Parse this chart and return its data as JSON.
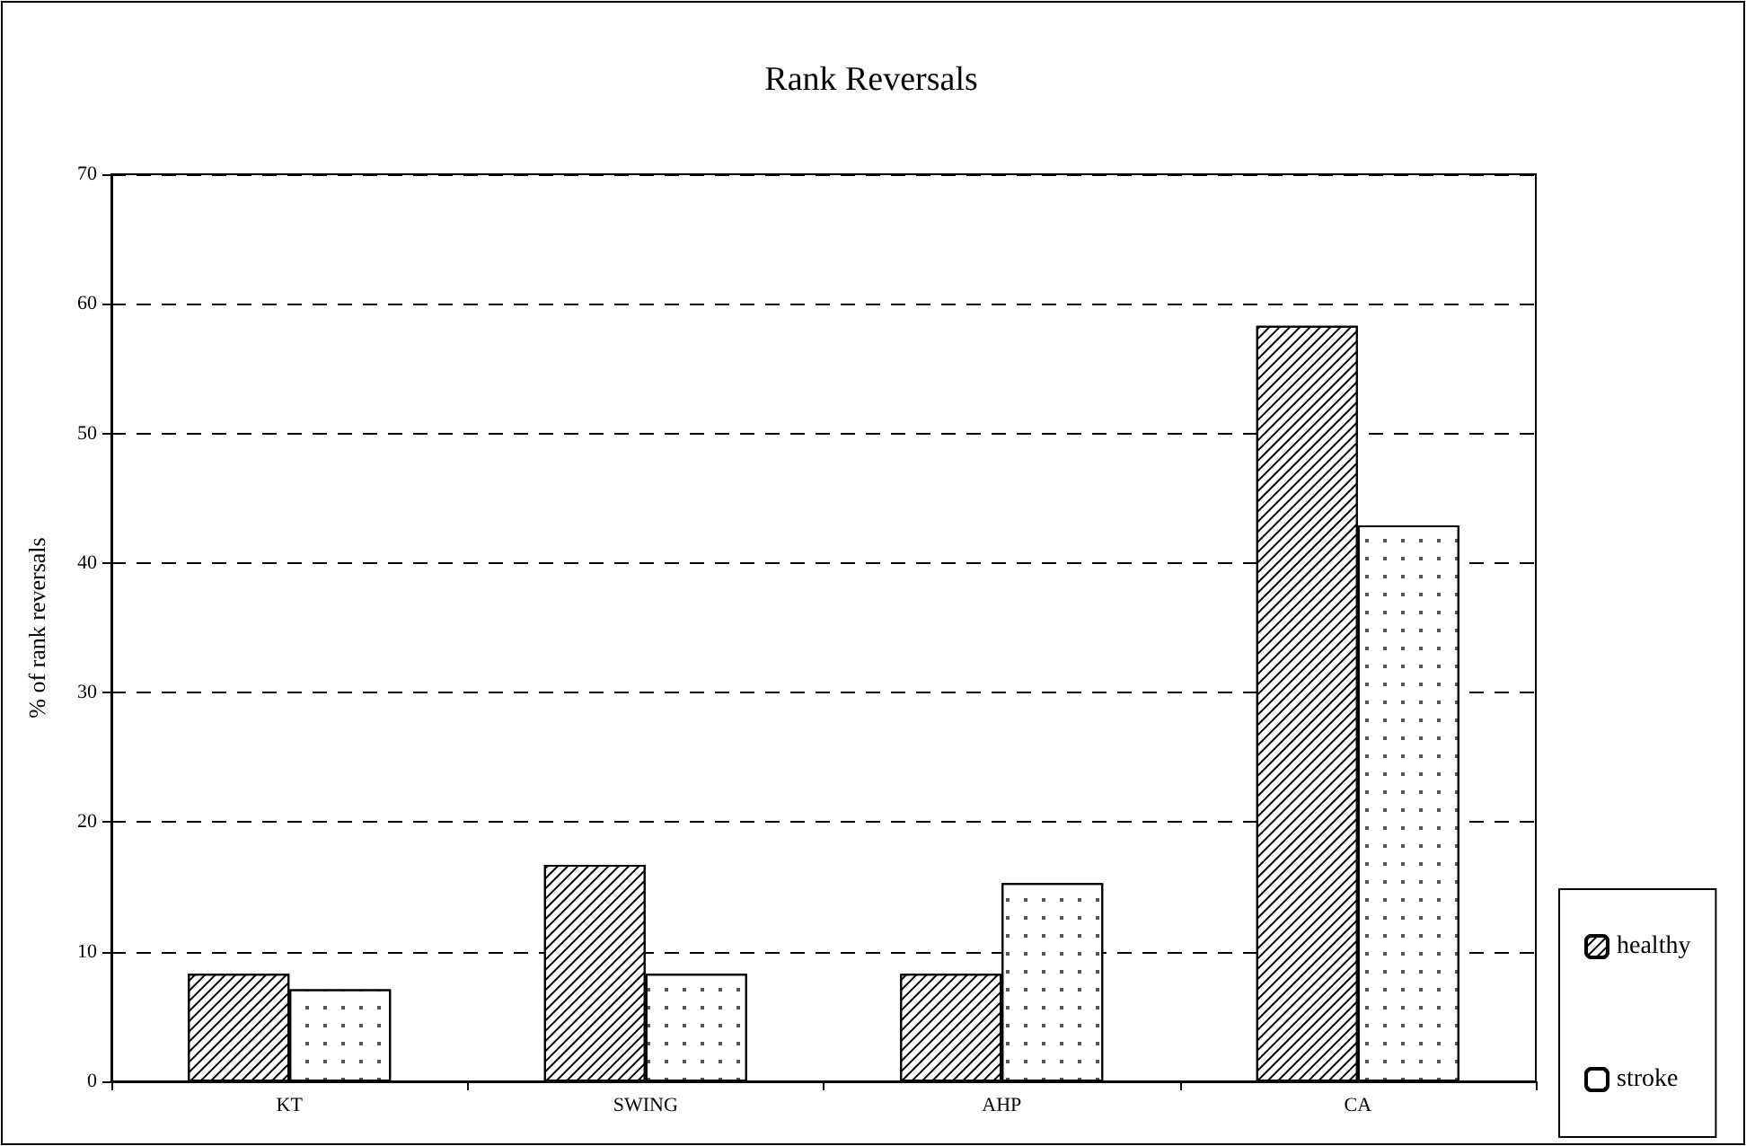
{
  "chart_data": {
    "type": "bar",
    "title": "Rank Reversals",
    "ylabel": "% of rank reversals",
    "categories": [
      "KT",
      "SWING",
      "AHP",
      "CA"
    ],
    "series": [
      {
        "name": "healthy",
        "color": "#ffffff",
        "values": [
          8.3,
          16.7,
          8.3,
          58.3
        ]
      },
      {
        "name": "stroke",
        "color": "#ffffff",
        "values": [
          7.1,
          8.3,
          15.3,
          42.9
        ]
      }
    ],
    "ylim": [
      0,
      70
    ],
    "yticks": [
      0,
      10,
      20,
      30,
      40,
      50,
      60,
      70
    ],
    "grid": "y",
    "legend": "right"
  }
}
